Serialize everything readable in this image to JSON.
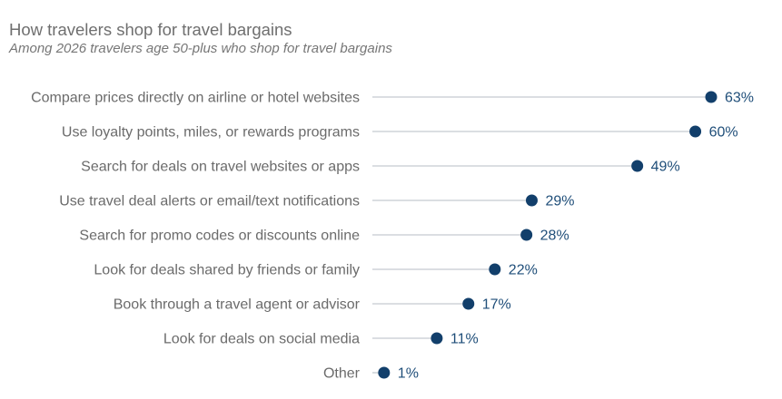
{
  "chart_data": {
    "type": "lollipop",
    "title": "How travelers shop for travel bargains",
    "subtitle": "Among 2026 travelers age 50-plus who shop for travel bargains",
    "xlabel": "",
    "ylabel": "",
    "unit": "%",
    "xlim": [
      0,
      63
    ],
    "grid": false,
    "legend": "none",
    "categories": [
      "Compare prices directly on airline or hotel websites",
      "Use loyalty points, miles, or rewards programs",
      "Search for deals on travel websites or apps",
      "Use travel deal alerts or email/text notifications",
      "Search for promo codes or discounts online",
      "Look for deals shared by friends or family",
      "Book through a travel agent or advisor",
      "Look for deals on social media",
      "Other"
    ],
    "values": [
      63,
      60,
      49,
      29,
      28,
      22,
      17,
      11,
      1
    ],
    "value_labels": [
      "63%",
      "60%",
      "49%",
      "29%",
      "28%",
      "22%",
      "17%",
      "11%",
      "1%"
    ],
    "colors": {
      "marker": "#123f6b",
      "stem": "#cfd3d8",
      "value_text": "#1f4e79",
      "category_text": "#6b6b6b"
    }
  }
}
